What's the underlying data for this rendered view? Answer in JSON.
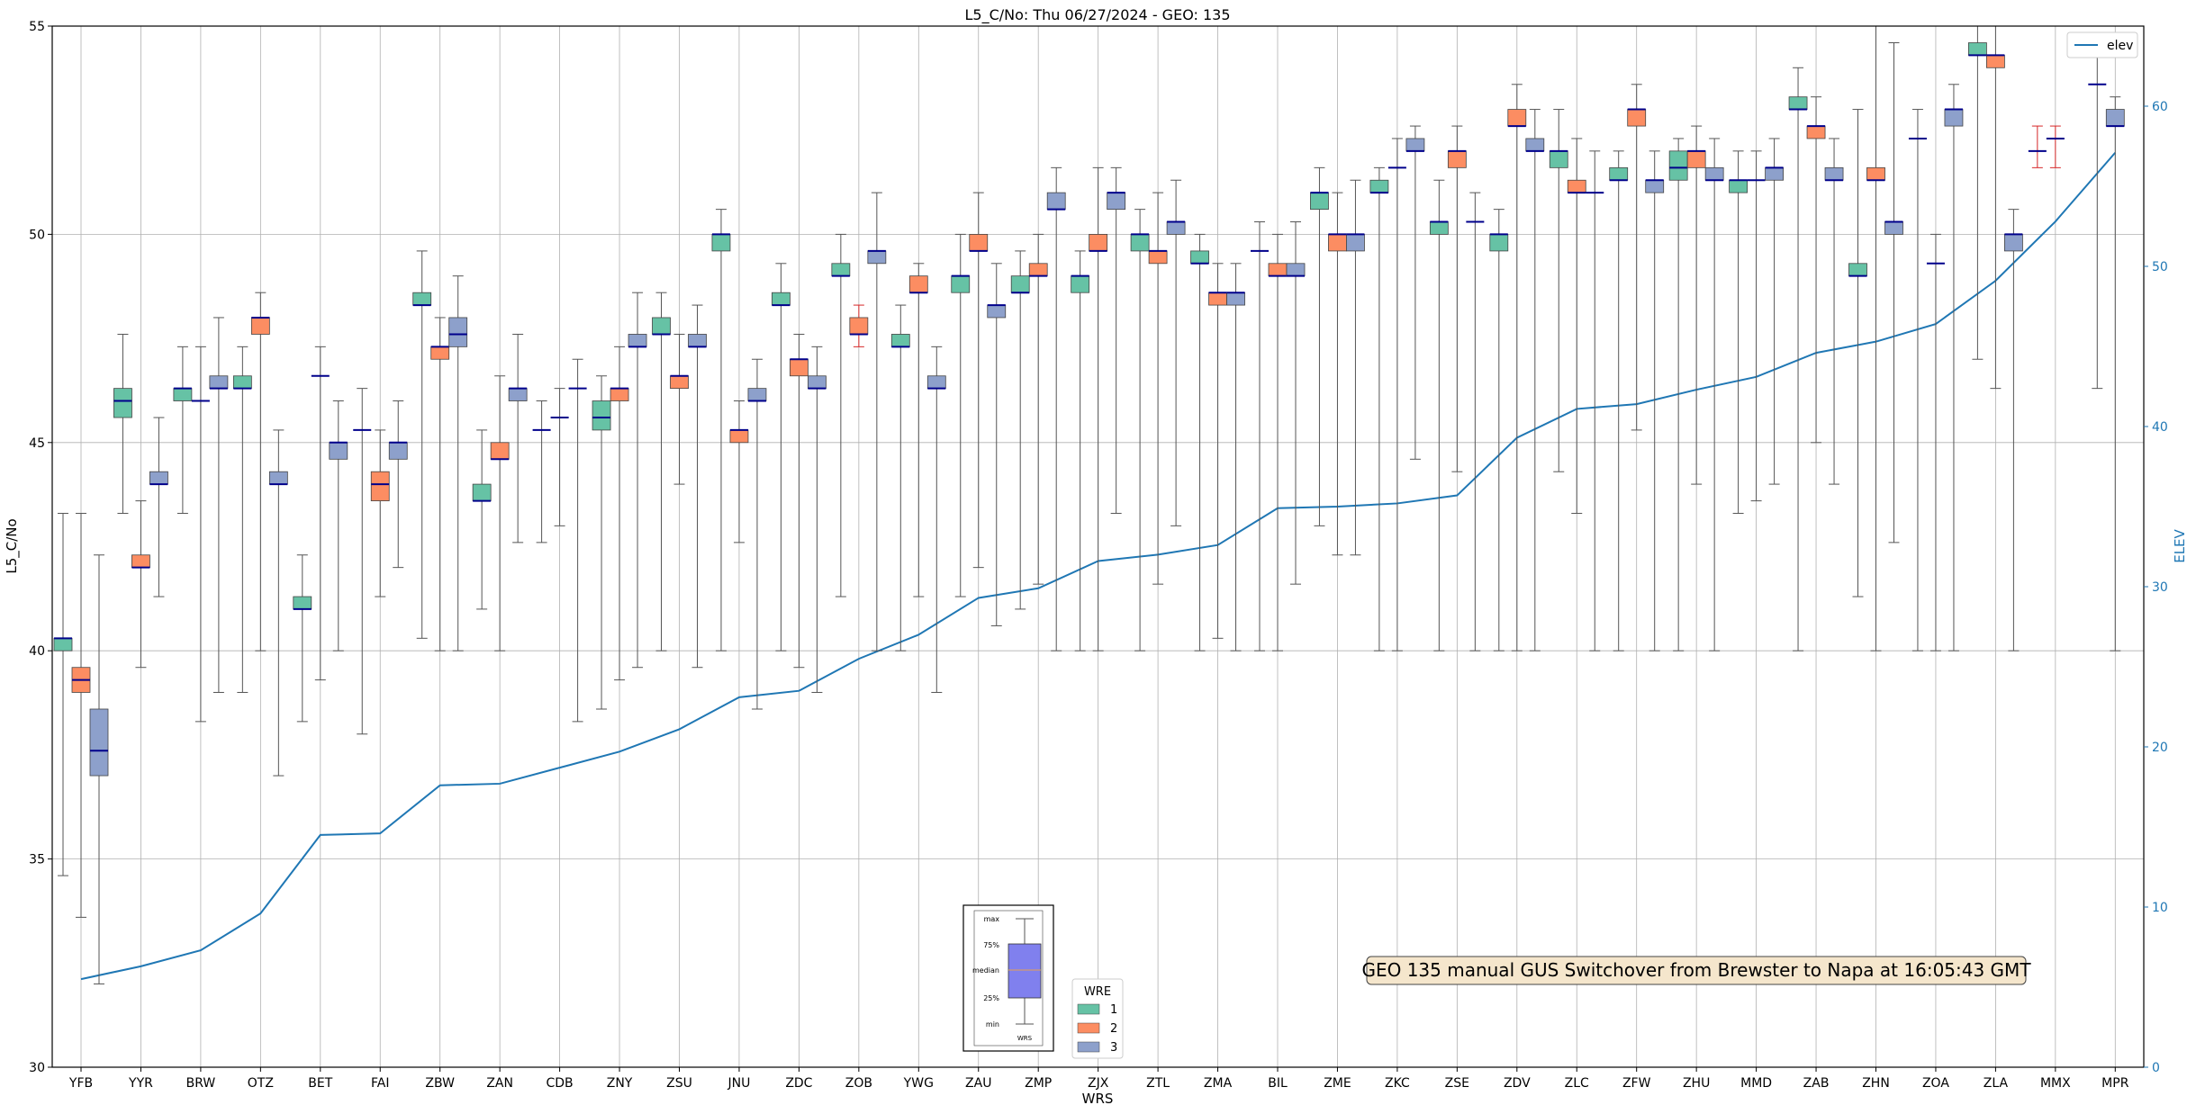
{
  "chart_data": {
    "type": "box",
    "title": "L5_C/No: Thu 06/27/2024 - GEO: 135",
    "xlabel": "WRS",
    "ylabel": "L5_C/No",
    "y2label": "ELEV",
    "ylim": [
      30,
      55
    ],
    "y2lim": [
      0,
      65
    ],
    "yticks": [
      30,
      35,
      40,
      45,
      50,
      55
    ],
    "y2ticks": [
      0,
      10,
      20,
      30,
      40,
      50,
      60
    ],
    "grid": true,
    "categories": [
      "YFB",
      "YYR",
      "BRW",
      "OTZ",
      "BET",
      "FAI",
      "ZBW",
      "ZAN",
      "CDB",
      "ZNY",
      "ZSU",
      "JNU",
      "ZDC",
      "ZOB",
      "YWG",
      "ZAU",
      "ZMP",
      "ZJX",
      "ZTL",
      "ZMA",
      "BIL",
      "ZME",
      "ZKC",
      "ZSE",
      "ZDV",
      "ZLC",
      "ZFW",
      "ZHU",
      "MMD",
      "ZAB",
      "ZHN",
      "ZOA",
      "ZLA",
      "MMX",
      "MPR"
    ],
    "wre_colors": {
      "1": "#66c2a5",
      "2": "#fc8d62",
      "3": "#8da0cb"
    },
    "boxes": [
      {
        "cat": "YFB",
        "wre": 1,
        "min": 34.6,
        "q1": 40.0,
        "median": 40.3,
        "q3": 40.3,
        "max": 43.3
      },
      {
        "cat": "YFB",
        "wre": 2,
        "min": 33.6,
        "q1": 39.0,
        "median": 39.3,
        "q3": 39.6,
        "max": 43.3
      },
      {
        "cat": "YFB",
        "wre": 3,
        "min": 32.0,
        "q1": 37.0,
        "median": 37.6,
        "q3": 38.6,
        "max": 42.3
      },
      {
        "cat": "YYR",
        "wre": 1,
        "min": 43.3,
        "q1": 45.6,
        "median": 46.0,
        "q3": 46.3,
        "max": 47.6
      },
      {
        "cat": "YYR",
        "wre": 2,
        "min": 39.6,
        "q1": 42.0,
        "median": 42.0,
        "q3": 42.3,
        "max": 43.6
      },
      {
        "cat": "YYR",
        "wre": 3,
        "min": 41.3,
        "q1": 44.0,
        "median": 44.0,
        "q3": 44.3,
        "max": 45.6
      },
      {
        "cat": "BRW",
        "wre": 1,
        "min": 43.3,
        "q1": 46.0,
        "median": 46.3,
        "q3": 46.3,
        "max": 47.3
      },
      {
        "cat": "BRW",
        "wre": 3,
        "min": 38.3,
        "q1": 46.0,
        "median": 46.0,
        "q3": 46.0,
        "max": 47.3
      },
      {
        "cat": "BRW",
        "wre": 3,
        "min": 39.0,
        "q1": 46.3,
        "median": 46.3,
        "q3": 46.6,
        "max": 48.0
      },
      {
        "cat": "OTZ",
        "wre": 1,
        "min": 39.0,
        "q1": 46.3,
        "median": 46.3,
        "q3": 46.6,
        "max": 47.3
      },
      {
        "cat": "OTZ",
        "wre": 2,
        "min": 40.0,
        "q1": 47.6,
        "median": 48.0,
        "q3": 48.0,
        "max": 48.6
      },
      {
        "cat": "OTZ",
        "wre": 3,
        "min": 37.0,
        "q1": 44.0,
        "median": 44.0,
        "q3": 44.3,
        "max": 45.3
      },
      {
        "cat": "BET",
        "wre": 1,
        "min": 38.3,
        "q1": 41.0,
        "median": 41.0,
        "q3": 41.3,
        "max": 42.3
      },
      {
        "cat": "BET",
        "wre": 3,
        "min": 39.3,
        "q1": 46.6,
        "median": 46.6,
        "q3": 46.6,
        "max": 47.3
      },
      {
        "cat": "BET",
        "wre": 3,
        "min": 40.0,
        "q1": 44.6,
        "median": 45.0,
        "q3": 45.0,
        "max": 46.0
      },
      {
        "cat": "FAI",
        "wre": 3,
        "min": 38.0,
        "q1": 45.3,
        "median": 45.3,
        "q3": 45.3,
        "max": 46.3
      },
      {
        "cat": "FAI",
        "wre": 2,
        "min": 41.3,
        "q1": 43.6,
        "median": 44.0,
        "q3": 44.3,
        "max": 45.3
      },
      {
        "cat": "FAI",
        "wre": 3,
        "min": 42.0,
        "q1": 44.6,
        "median": 45.0,
        "q3": 45.0,
        "max": 46.0
      },
      {
        "cat": "ZBW",
        "wre": 1,
        "min": 40.3,
        "q1": 48.3,
        "median": 48.3,
        "q3": 48.6,
        "max": 49.6
      },
      {
        "cat": "ZBW",
        "wre": 2,
        "min": 40.0,
        "q1": 47.0,
        "median": 47.3,
        "q3": 47.3,
        "max": 48.0
      },
      {
        "cat": "ZBW",
        "wre": 3,
        "min": 40.0,
        "q1": 47.3,
        "median": 47.6,
        "q3": 48.0,
        "max": 49.0
      },
      {
        "cat": "ZAN",
        "wre": 1,
        "min": 41.0,
        "q1": 43.6,
        "median": 43.6,
        "q3": 44.0,
        "max": 45.3
      },
      {
        "cat": "ZAN",
        "wre": 2,
        "min": 40.0,
        "q1": 44.6,
        "median": 44.6,
        "q3": 45.0,
        "max": 46.6
      },
      {
        "cat": "ZAN",
        "wre": 3,
        "min": 42.6,
        "q1": 46.0,
        "median": 46.3,
        "q3": 46.3,
        "max": 47.6
      },
      {
        "cat": "CDB",
        "wre": 3,
        "min": 42.6,
        "q1": 45.3,
        "median": 45.3,
        "q3": 45.3,
        "max": 46.0
      },
      {
        "cat": "CDB",
        "wre": 3,
        "min": 43.0,
        "q1": 45.6,
        "median": 45.6,
        "q3": 45.6,
        "max": 46.3
      },
      {
        "cat": "CDB",
        "wre": 3,
        "min": 38.3,
        "q1": 46.3,
        "median": 46.3,
        "q3": 46.3,
        "max": 47.0
      },
      {
        "cat": "ZNY",
        "wre": 1,
        "min": 38.6,
        "q1": 45.3,
        "median": 45.6,
        "q3": 46.0,
        "max": 46.6
      },
      {
        "cat": "ZNY",
        "wre": 2,
        "min": 39.3,
        "q1": 46.0,
        "median": 46.3,
        "q3": 46.3,
        "max": 47.3
      },
      {
        "cat": "ZNY",
        "wre": 3,
        "min": 39.6,
        "q1": 47.3,
        "median": 47.3,
        "q3": 47.6,
        "max": 48.6
      },
      {
        "cat": "ZSU",
        "wre": 1,
        "min": 40.0,
        "q1": 47.6,
        "median": 47.6,
        "q3": 48.0,
        "max": 48.6
      },
      {
        "cat": "ZSU",
        "wre": 2,
        "min": 44.0,
        "q1": 46.3,
        "median": 46.6,
        "q3": 46.6,
        "max": 47.6
      },
      {
        "cat": "ZSU",
        "wre": 3,
        "min": 39.6,
        "q1": 47.3,
        "median": 47.3,
        "q3": 47.6,
        "max": 48.3
      },
      {
        "cat": "JNU",
        "wre": 1,
        "min": 40.0,
        "q1": 49.6,
        "median": 50.0,
        "q3": 50.0,
        "max": 50.6
      },
      {
        "cat": "JNU",
        "wre": 2,
        "min": 42.6,
        "q1": 45.0,
        "median": 45.3,
        "q3": 45.3,
        "max": 46.0
      },
      {
        "cat": "JNU",
        "wre": 3,
        "min": 38.6,
        "q1": 46.0,
        "median": 46.0,
        "q3": 46.3,
        "max": 47.0
      },
      {
        "cat": "ZDC",
        "wre": 1,
        "min": 40.0,
        "q1": 48.3,
        "median": 48.3,
        "q3": 48.6,
        "max": 49.3
      },
      {
        "cat": "ZDC",
        "wre": 2,
        "min": 39.6,
        "q1": 46.6,
        "median": 47.0,
        "q3": 47.0,
        "max": 47.6
      },
      {
        "cat": "ZDC",
        "wre": 3,
        "min": 39.0,
        "q1": 46.3,
        "median": 46.3,
        "q3": 46.6,
        "max": 47.3
      },
      {
        "cat": "ZOB",
        "wre": 1,
        "min": 41.3,
        "q1": 49.0,
        "median": 49.0,
        "q3": 49.3,
        "max": 50.0
      },
      {
        "cat": "ZOB",
        "wre": 2,
        "min": 47.3,
        "q1": 47.6,
        "median": 47.6,
        "q3": 48.0,
        "max": 48.3
      },
      {
        "cat": "ZOB",
        "wre": 3,
        "min": 40.0,
        "q1": 49.3,
        "median": 49.6,
        "q3": 49.6,
        "max": 51.0
      },
      {
        "cat": "YWG",
        "wre": 1,
        "min": 40.0,
        "q1": 47.3,
        "median": 47.3,
        "q3": 47.6,
        "max": 48.3
      },
      {
        "cat": "YWG",
        "wre": 2,
        "min": 41.3,
        "q1": 48.6,
        "median": 48.6,
        "q3": 49.0,
        "max": 49.3
      },
      {
        "cat": "YWG",
        "wre": 3,
        "min": 39.0,
        "q1": 46.3,
        "median": 46.3,
        "q3": 46.6,
        "max": 47.3
      },
      {
        "cat": "ZAU",
        "wre": 1,
        "min": 41.3,
        "q1": 48.6,
        "median": 49.0,
        "q3": 49.0,
        "max": 50.0
      },
      {
        "cat": "ZAU",
        "wre": 2,
        "min": 42.0,
        "q1": 49.6,
        "median": 49.6,
        "q3": 50.0,
        "max": 51.0
      },
      {
        "cat": "ZAU",
        "wre": 3,
        "min": 40.6,
        "q1": 48.0,
        "median": 48.3,
        "q3": 48.3,
        "max": 49.3
      },
      {
        "cat": "ZMP",
        "wre": 1,
        "min": 41.0,
        "q1": 48.6,
        "median": 48.6,
        "q3": 49.0,
        "max": 49.6
      },
      {
        "cat": "ZMP",
        "wre": 2,
        "min": 41.6,
        "q1": 49.0,
        "median": 49.0,
        "q3": 49.3,
        "max": 50.0
      },
      {
        "cat": "ZMP",
        "wre": 3,
        "min": 40.0,
        "q1": 50.6,
        "median": 50.6,
        "q3": 51.0,
        "max": 51.6
      },
      {
        "cat": "ZJX",
        "wre": 1,
        "min": 40.0,
        "q1": 48.6,
        "median": 49.0,
        "q3": 49.0,
        "max": 49.6
      },
      {
        "cat": "ZJX",
        "wre": 2,
        "min": 40.0,
        "q1": 49.6,
        "median": 49.6,
        "q3": 50.0,
        "max": 51.6
      },
      {
        "cat": "ZJX",
        "wre": 3,
        "min": 43.3,
        "q1": 50.6,
        "median": 51.0,
        "q3": 51.0,
        "max": 51.6
      },
      {
        "cat": "ZTL",
        "wre": 1,
        "min": 40.0,
        "q1": 49.6,
        "median": 50.0,
        "q3": 50.0,
        "max": 50.6
      },
      {
        "cat": "ZTL",
        "wre": 2,
        "min": 41.6,
        "q1": 49.3,
        "median": 49.6,
        "q3": 49.6,
        "max": 51.0
      },
      {
        "cat": "ZTL",
        "wre": 3,
        "min": 43.0,
        "q1": 50.0,
        "median": 50.3,
        "q3": 50.3,
        "max": 51.3
      },
      {
        "cat": "ZMA",
        "wre": 1,
        "min": 40.0,
        "q1": 49.3,
        "median": 49.3,
        "q3": 49.6,
        "max": 50.0
      },
      {
        "cat": "ZMA",
        "wre": 2,
        "min": 40.3,
        "q1": 48.3,
        "median": 48.6,
        "q3": 48.6,
        "max": 49.3
      },
      {
        "cat": "ZMA",
        "wre": 3,
        "min": 40.0,
        "q1": 48.3,
        "median": 48.6,
        "q3": 48.6,
        "max": 49.3
      },
      {
        "cat": "BIL",
        "wre": 3,
        "min": 40.0,
        "q1": 49.6,
        "median": 49.6,
        "q3": 49.6,
        "max": 50.3
      },
      {
        "cat": "BIL",
        "wre": 2,
        "min": 40.0,
        "q1": 49.0,
        "median": 49.0,
        "q3": 49.3,
        "max": 50.0
      },
      {
        "cat": "BIL",
        "wre": 3,
        "min": 41.6,
        "q1": 49.0,
        "median": 49.0,
        "q3": 49.3,
        "max": 50.3
      },
      {
        "cat": "ZME",
        "wre": 1,
        "min": 43.0,
        "q1": 50.6,
        "median": 51.0,
        "q3": 51.0,
        "max": 51.6
      },
      {
        "cat": "ZME",
        "wre": 2,
        "min": 42.3,
        "q1": 49.6,
        "median": 50.0,
        "q3": 50.0,
        "max": 51.0
      },
      {
        "cat": "ZME",
        "wre": 3,
        "min": 42.3,
        "q1": 49.6,
        "median": 50.0,
        "q3": 50.0,
        "max": 51.3
      },
      {
        "cat": "ZKC",
        "wre": 1,
        "min": 40.0,
        "q1": 51.0,
        "median": 51.0,
        "q3": 51.3,
        "max": 51.6
      },
      {
        "cat": "ZKC",
        "wre": 3,
        "min": 40.0,
        "q1": 51.6,
        "median": 51.6,
        "q3": 51.6,
        "max": 52.3
      },
      {
        "cat": "ZKC",
        "wre": 3,
        "min": 44.6,
        "q1": 52.0,
        "median": 52.0,
        "q3": 52.3,
        "max": 52.6
      },
      {
        "cat": "ZSE",
        "wre": 1,
        "min": 40.0,
        "q1": 50.0,
        "median": 50.3,
        "q3": 50.3,
        "max": 51.3
      },
      {
        "cat": "ZSE",
        "wre": 2,
        "min": 44.3,
        "q1": 51.6,
        "median": 52.0,
        "q3": 52.0,
        "max": 52.6
      },
      {
        "cat": "ZSE",
        "wre": 3,
        "min": 40.0,
        "q1": 50.3,
        "median": 50.3,
        "q3": 50.3,
        "max": 51.0
      },
      {
        "cat": "ZDV",
        "wre": 1,
        "min": 40.0,
        "q1": 49.6,
        "median": 50.0,
        "q3": 50.0,
        "max": 50.6
      },
      {
        "cat": "ZDV",
        "wre": 2,
        "min": 40.0,
        "q1": 52.6,
        "median": 52.6,
        "q3": 53.0,
        "max": 53.6
      },
      {
        "cat": "ZDV",
        "wre": 3,
        "min": 40.0,
        "q1": 52.0,
        "median": 52.0,
        "q3": 52.3,
        "max": 53.0
      },
      {
        "cat": "ZLC",
        "wre": 1,
        "min": 44.3,
        "q1": 51.6,
        "median": 52.0,
        "q3": 52.0,
        "max": 53.0
      },
      {
        "cat": "ZLC",
        "wre": 2,
        "min": 43.3,
        "q1": 51.0,
        "median": 51.0,
        "q3": 51.3,
        "max": 52.3
      },
      {
        "cat": "ZLC",
        "wre": 3,
        "min": 40.0,
        "q1": 51.0,
        "median": 51.0,
        "q3": 51.0,
        "max": 52.0
      },
      {
        "cat": "ZFW",
        "wre": 1,
        "min": 40.0,
        "q1": 51.3,
        "median": 51.3,
        "q3": 51.6,
        "max": 52.0
      },
      {
        "cat": "ZFW",
        "wre": 2,
        "min": 45.3,
        "q1": 52.6,
        "median": 53.0,
        "q3": 53.0,
        "max": 53.6
      },
      {
        "cat": "ZFW",
        "wre": 3,
        "min": 40.0,
        "q1": 51.0,
        "median": 51.3,
        "q3": 51.3,
        "max": 52.0
      },
      {
        "cat": "ZHU",
        "wre": 1,
        "min": 40.0,
        "q1": 51.3,
        "median": 51.6,
        "q3": 52.0,
        "max": 52.3
      },
      {
        "cat": "ZHU",
        "wre": 2,
        "min": 44.0,
        "q1": 51.6,
        "median": 52.0,
        "q3": 52.0,
        "max": 52.6
      },
      {
        "cat": "ZHU",
        "wre": 3,
        "min": 40.0,
        "q1": 51.3,
        "median": 51.3,
        "q3": 51.6,
        "max": 52.3
      },
      {
        "cat": "MMD",
        "wre": 1,
        "min": 43.3,
        "q1": 51.0,
        "median": 51.3,
        "q3": 51.3,
        "max": 52.0
      },
      {
        "cat": "MMD",
        "wre": 3,
        "min": 43.6,
        "q1": 51.3,
        "median": 51.3,
        "q3": 51.3,
        "max": 52.0
      },
      {
        "cat": "MMD",
        "wre": 3,
        "min": 44.0,
        "q1": 51.3,
        "median": 51.6,
        "q3": 51.6,
        "max": 52.3
      },
      {
        "cat": "ZAB",
        "wre": 1,
        "min": 40.0,
        "q1": 53.0,
        "median": 53.0,
        "q3": 53.3,
        "max": 54.0
      },
      {
        "cat": "ZAB",
        "wre": 2,
        "min": 45.0,
        "q1": 52.3,
        "median": 52.6,
        "q3": 52.6,
        "max": 53.3
      },
      {
        "cat": "ZAB",
        "wre": 3,
        "min": 44.0,
        "q1": 51.3,
        "median": 51.3,
        "q3": 51.6,
        "max": 52.3
      },
      {
        "cat": "ZHN",
        "wre": 1,
        "min": 41.3,
        "q1": 49.0,
        "median": 49.0,
        "q3": 49.3,
        "max": 53.0
      },
      {
        "cat": "ZHN",
        "wre": 2,
        "min": 40.0,
        "q1": 51.3,
        "median": 51.3,
        "q3": 51.6,
        "max": 55.0
      },
      {
        "cat": "ZHN",
        "wre": 3,
        "min": 42.6,
        "q1": 50.0,
        "median": 50.3,
        "q3": 50.3,
        "max": 54.6
      },
      {
        "cat": "ZOA",
        "wre": 3,
        "min": 40.0,
        "q1": 52.3,
        "median": 52.3,
        "q3": 52.3,
        "max": 53.0
      },
      {
        "cat": "ZOA",
        "wre": 3,
        "min": 40.0,
        "q1": 49.3,
        "median": 49.3,
        "q3": 49.3,
        "max": 50.0
      },
      {
        "cat": "ZOA",
        "wre": 3,
        "min": 40.0,
        "q1": 52.6,
        "median": 53.0,
        "q3": 53.0,
        "max": 53.6
      },
      {
        "cat": "ZLA",
        "wre": 1,
        "min": 47.0,
        "q1": 54.3,
        "median": 54.3,
        "q3": 54.6,
        "max": 55.0
      },
      {
        "cat": "ZLA",
        "wre": 2,
        "min": 46.3,
        "q1": 54.0,
        "median": 54.3,
        "q3": 54.3,
        "max": 55.0
      },
      {
        "cat": "ZLA",
        "wre": 3,
        "min": 40.0,
        "q1": 49.6,
        "median": 50.0,
        "q3": 50.0,
        "max": 50.6
      },
      {
        "cat": "MMX",
        "wre": 2,
        "min": 51.6,
        "q1": 52.0,
        "median": 52.0,
        "q3": 52.0,
        "max": 52.6
      },
      {
        "cat": "MMX",
        "wre": 2,
        "min": 51.6,
        "q1": 52.3,
        "median": 52.3,
        "q3": 52.3,
        "max": 52.6
      },
      {
        "cat": "MPR",
        "wre": 3,
        "min": 46.3,
        "q1": 53.6,
        "median": 53.6,
        "q3": 53.6,
        "max": 54.6
      },
      {
        "cat": "MPR",
        "wre": 3,
        "min": 40.0,
        "q1": 52.6,
        "median": 52.6,
        "q3": 53.0,
        "max": 53.3
      }
    ],
    "elev_series": {
      "name": "elev",
      "color": "#1f77b4",
      "values": [
        5.5,
        6.3,
        7.3,
        9.6,
        14.5,
        14.6,
        17.6,
        17.7,
        18.7,
        19.7,
        21.1,
        23.1,
        23.5,
        25.5,
        27.0,
        29.3,
        29.9,
        31.6,
        32.0,
        32.6,
        34.9,
        35.0,
        35.2,
        35.7,
        39.3,
        41.1,
        41.4,
        42.3,
        43.1,
        44.6,
        45.3,
        46.4,
        49.1,
        52.8,
        57.1
      ]
    },
    "legend_elev": "elev",
    "legend_wre": {
      "title": "WRE",
      "labels": [
        "1",
        "2",
        "3"
      ]
    },
    "annotation": "GEO 135 manual GUS Switchover from Brewster to Napa at 16:05:43 GMT",
    "key_box": {
      "labels": [
        "max",
        "75%",
        "median",
        "25%",
        "min"
      ],
      "xlabel": "WRS"
    }
  }
}
